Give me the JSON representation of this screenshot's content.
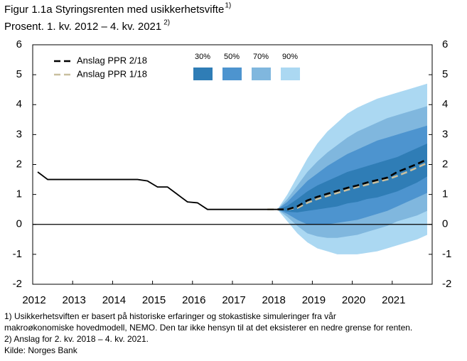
{
  "chart_data": {
    "type": "fan",
    "title": "Figur 1.1a Styringsrenten med usikkerhetsvifte",
    "title_note": "1)",
    "subtitle": "Prosent. 1. kv. 2012 – 4. kv. 2021",
    "subtitle_note": "2)",
    "notes": [
      "1) Usikkerhetsviften er basert på historiske erfaringer og stokastiske simuleringer fra vår",
      "makroøkonomiske hovedmodell, NEMO. Den tar ikke hensyn til at det eksisterer en nedre grense for renten.",
      "2) Anslag for 2. kv. 2018 – 4. kv. 2021.",
      "Kilde: Norges Bank"
    ],
    "xlim": [
      2012,
      2022
    ],
    "xticks": [
      2012,
      2013,
      2014,
      2015,
      2016,
      2017,
      2018,
      2019,
      2020,
      2021
    ],
    "ylim": [
      -2,
      6
    ],
    "yticks": [
      -2,
      -1,
      0,
      1,
      2,
      3,
      4,
      5,
      6
    ],
    "y2lim": [
      -2,
      6
    ],
    "y2ticks": [
      -2,
      -1,
      0,
      1,
      2,
      3,
      4,
      5,
      6
    ],
    "x": [
      2012.125,
      2012.375,
      2012.625,
      2012.875,
      2013.125,
      2013.375,
      2013.625,
      2013.875,
      2014.125,
      2014.375,
      2014.625,
      2014.875,
      2015.125,
      2015.375,
      2015.625,
      2015.875,
      2016.125,
      2016.375,
      2016.625,
      2016.875,
      2017.125,
      2017.375,
      2017.625,
      2017.875,
      2018.125,
      2018.375,
      2018.625,
      2018.875,
      2019.125,
      2019.375,
      2019.625,
      2019.875,
      2020.125,
      2020.375,
      2020.625,
      2020.875,
      2021.125,
      2021.375,
      2021.625,
      2021.875
    ],
    "series": [
      {
        "color": "#000000",
        "dashed": false,
        "values": [
          1.75,
          1.5,
          1.5,
          1.5,
          1.5,
          1.5,
          1.5,
          1.5,
          1.5,
          1.5,
          1.5,
          1.45,
          1.25,
          1.25,
          1.0,
          0.75,
          0.72,
          0.5,
          0.5,
          0.5,
          0.5,
          0.5,
          0.5,
          0.5,
          0.5,
          null,
          null,
          null,
          null,
          null,
          null,
          null,
          null,
          null,
          null,
          null,
          null,
          null,
          null,
          null
        ]
      },
      {
        "name": "Anslag PPR 2/18",
        "color": "#000000",
        "dashed": true,
        "values": [
          null,
          null,
          null,
          null,
          null,
          null,
          null,
          null,
          null,
          null,
          null,
          null,
          null,
          null,
          null,
          null,
          null,
          null,
          null,
          null,
          null,
          null,
          null,
          null,
          0.5,
          0.5,
          0.6,
          0.8,
          0.92,
          1.02,
          1.12,
          1.22,
          1.3,
          1.4,
          1.48,
          1.56,
          1.75,
          1.88,
          2.02,
          2.17
        ]
      },
      {
        "name": "Anslag PPR 1/18",
        "color": "#c9bf9f",
        "dashed": true,
        "values": [
          null,
          null,
          null,
          null,
          null,
          null,
          null,
          null,
          null,
          null,
          null,
          null,
          null,
          null,
          null,
          null,
          null,
          null,
          null,
          null,
          null,
          null,
          null,
          0.5,
          0.5,
          0.5,
          0.55,
          0.72,
          0.85,
          0.95,
          1.05,
          1.15,
          1.25,
          1.33,
          1.42,
          1.5,
          1.62,
          1.75,
          1.9,
          2.05
        ]
      }
    ],
    "fan": {
      "x": [
        2018.125,
        2018.375,
        2018.625,
        2018.875,
        2019.125,
        2019.375,
        2019.625,
        2019.875,
        2020.125,
        2020.375,
        2020.625,
        2020.875,
        2021.125,
        2021.375,
        2021.625,
        2021.875
      ],
      "bands": [
        {
          "name": "30%",
          "color": "#2f7db6",
          "upper": [
            0.5,
            0.62,
            0.85,
            1.1,
            1.3,
            1.45,
            1.6,
            1.75,
            1.85,
            1.95,
            2.05,
            2.15,
            2.25,
            2.4,
            2.55,
            2.7
          ],
          "lower": [
            0.5,
            0.42,
            0.4,
            0.45,
            0.5,
            0.55,
            0.6,
            0.7,
            0.75,
            0.85,
            0.9,
            1.0,
            1.1,
            1.25,
            1.4,
            1.6
          ]
        },
        {
          "name": "50%",
          "color": "#4d94cf",
          "upper": [
            0.5,
            0.75,
            1.1,
            1.45,
            1.7,
            1.95,
            2.15,
            2.35,
            2.5,
            2.65,
            2.8,
            2.9,
            3.0,
            3.1,
            3.2,
            3.3
          ],
          "lower": [
            0.5,
            0.35,
            0.15,
            0.0,
            0.0,
            0.0,
            0.05,
            0.1,
            0.15,
            0.25,
            0.35,
            0.45,
            0.6,
            0.75,
            0.9,
            1.05
          ]
        },
        {
          "name": "70%",
          "color": "#80b7de",
          "upper": [
            0.5,
            0.85,
            1.3,
            1.75,
            2.1,
            2.4,
            2.65,
            2.9,
            3.1,
            3.25,
            3.4,
            3.55,
            3.65,
            3.75,
            3.85,
            3.95
          ],
          "lower": [
            0.5,
            0.25,
            -0.05,
            -0.3,
            -0.4,
            -0.45,
            -0.45,
            -0.4,
            -0.35,
            -0.25,
            -0.15,
            -0.05,
            0.1,
            0.2,
            0.3,
            0.45
          ]
        },
        {
          "name": "90%",
          "color": "#abd8f2",
          "upper": [
            0.5,
            1.0,
            1.6,
            2.2,
            2.7,
            3.1,
            3.4,
            3.7,
            3.9,
            4.05,
            4.2,
            4.3,
            4.4,
            4.5,
            4.6,
            4.7
          ],
          "lower": [
            0.5,
            0.1,
            -0.3,
            -0.6,
            -0.8,
            -0.9,
            -1.0,
            -1.0,
            -1.0,
            -0.95,
            -0.9,
            -0.8,
            -0.7,
            -0.6,
            -0.5,
            -0.35
          ]
        }
      ]
    }
  }
}
